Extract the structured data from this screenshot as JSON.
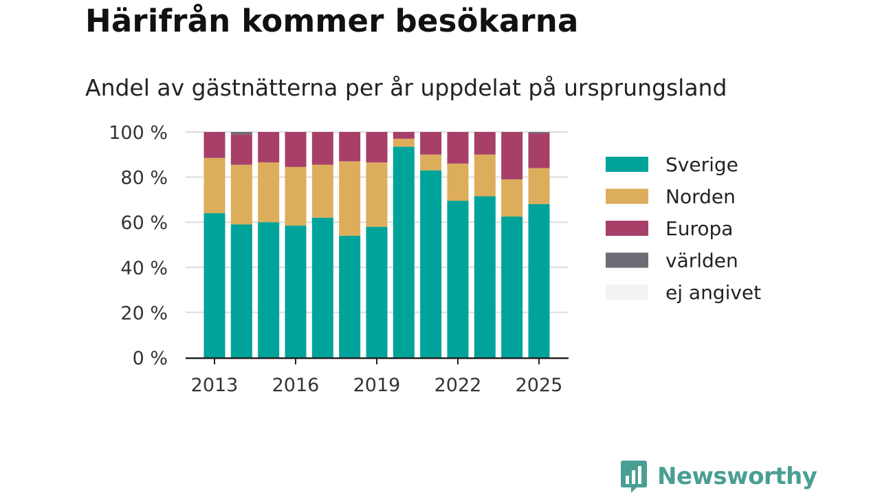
{
  "title": "Härifrån kommer besökarna",
  "subtitle": "Andel av gästnätterna per år uppdelat på ursprungsland",
  "brand": "Newsworthy",
  "chart_data": {
    "type": "bar",
    "stacked": true,
    "x": [
      2013,
      2014,
      2015,
      2016,
      2017,
      2018,
      2019,
      2020,
      2021,
      2022,
      2023,
      2024,
      2025
    ],
    "x_tick_labels": [
      "2013",
      "2016",
      "2019",
      "2022",
      "2025"
    ],
    "y_tick_labels": [
      "0 %",
      "20 %",
      "40 %",
      "60 %",
      "80 %",
      "100 %"
    ],
    "ylim": [
      0,
      100
    ],
    "grid": true,
    "legend_position": "right",
    "series": [
      {
        "name": "Sverige",
        "color": "#00a39a",
        "values": [
          64,
          59,
          60,
          58.5,
          62,
          54,
          58,
          93.5,
          83,
          69.5,
          71.5,
          62.5,
          68
        ]
      },
      {
        "name": "Norden",
        "color": "#dcae5c",
        "values": [
          24.5,
          26.5,
          26.5,
          26,
          23.5,
          33,
          28.5,
          3.5,
          7,
          16.5,
          18.5,
          16.5,
          16
        ]
      },
      {
        "name": "Europa",
        "color": "#a73f69",
        "values": [
          11.5,
          13.5,
          13.5,
          15.5,
          14.5,
          13,
          13.5,
          3,
          10,
          14,
          10,
          21,
          15.5
        ]
      },
      {
        "name": "världen",
        "color": "#6c6d74",
        "values": [
          0,
          1,
          0,
          0,
          0,
          0,
          0,
          0,
          0,
          0,
          0,
          0,
          0.5
        ]
      },
      {
        "name": "ej angivet",
        "color": "#f3f3f1",
        "values": [
          0,
          0,
          0,
          0,
          0,
          0,
          0,
          0,
          0,
          0,
          0,
          0,
          0
        ]
      }
    ]
  }
}
